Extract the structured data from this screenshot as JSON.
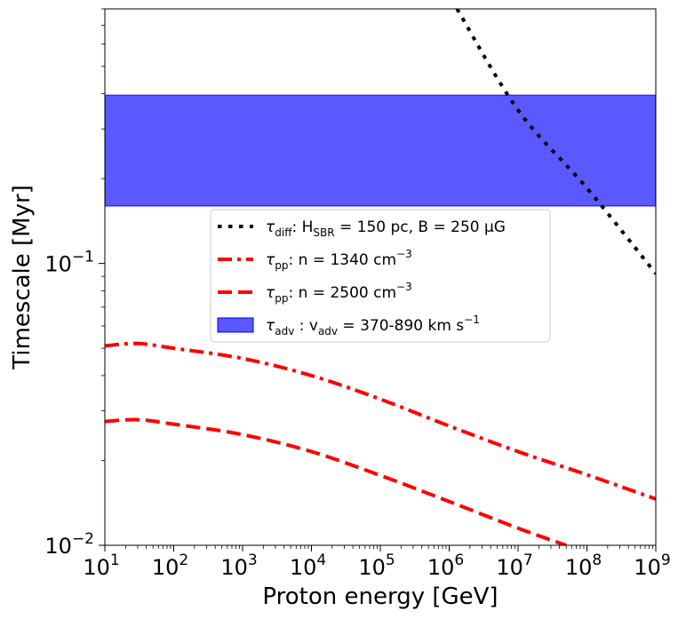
{
  "chart_data": {
    "type": "line",
    "xlabel": "Proton energy [GeV]",
    "ylabel": "Timescale [Myr]",
    "xscale": "log",
    "yscale": "log",
    "xlim": [
      10,
      1000000000
    ],
    "ylim": [
      0.01,
      0.8
    ],
    "grid": false,
    "legend_position": "center",
    "x_ticks": [
      {
        "value": 10,
        "base": "10",
        "exp": "1"
      },
      {
        "value": 100,
        "base": "10",
        "exp": "2"
      },
      {
        "value": 1000,
        "base": "10",
        "exp": "3"
      },
      {
        "value": 10000,
        "base": "10",
        "exp": "4"
      },
      {
        "value": 100000,
        "base": "10",
        "exp": "5"
      },
      {
        "value": 1000000,
        "base": "10",
        "exp": "6"
      },
      {
        "value": 10000000,
        "base": "10",
        "exp": "7"
      },
      {
        "value": 100000000,
        "base": "10",
        "exp": "8"
      },
      {
        "value": 1000000000,
        "base": "10",
        "exp": "9"
      }
    ],
    "y_ticks": [
      {
        "value": 0.01,
        "base": "10",
        "exp": "−2"
      },
      {
        "value": 0.1,
        "base": "10",
        "exp": "−1"
      }
    ],
    "series": [
      {
        "key": "diff",
        "color": "#000000",
        "style": "dotted",
        "legend": {
          "sym": "τ",
          "sub": "diff",
          "rest": ": H",
          "rest_sub": "SBR",
          "tail": " = 150 pc, B = 250 μG"
        },
        "x": [
          1300000,
          10000000,
          100000000,
          1000000000
        ],
        "y": [
          0.8,
          0.35,
          0.185,
          0.092
        ]
      },
      {
        "key": "pp1340",
        "color": "#ff0000",
        "style": "dashdot",
        "legend": {
          "sym": "τ",
          "sub": "pp",
          "rest": ": n = 1340 cm",
          "sup": "−3"
        },
        "x": [
          10,
          30,
          100,
          1000,
          10000,
          100000,
          1000000,
          10000000,
          100000000,
          1000000000
        ],
        "y": [
          0.051,
          0.052,
          0.05,
          0.046,
          0.04,
          0.033,
          0.0265,
          0.0215,
          0.0178,
          0.0146
        ]
      },
      {
        "key": "pp2500",
        "color": "#ff0000",
        "style": "dashed",
        "legend": {
          "sym": "τ",
          "sub": "pp",
          "rest": ": n = 2500 cm",
          "sup": "−3"
        },
        "x": [
          10,
          30,
          100,
          1000,
          10000,
          100000,
          1000000,
          10000000,
          50000000
        ],
        "y": [
          0.0275,
          0.0279,
          0.0269,
          0.0247,
          0.0215,
          0.0177,
          0.0143,
          0.0115,
          0.01
        ]
      }
    ],
    "bands": [
      {
        "key": "adv",
        "color": "#0000ff",
        "opacity": 0.65,
        "legend": {
          "sym": "τ",
          "sub": "adv",
          "rest": " : v",
          "rest_sub": "adv",
          "tail": " = 370-890 km s",
          "sup": "−1"
        },
        "y_low": 0.16,
        "y_high": 0.395
      }
    ]
  }
}
